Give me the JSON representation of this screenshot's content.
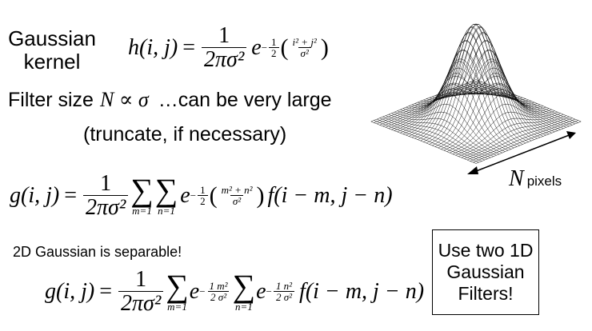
{
  "title": {
    "line1": "Gaussian",
    "line2": "kernel"
  },
  "kernel_formula": {
    "lhs": "h(i, j)",
    "equals": "=",
    "numerator": "1",
    "denominator": "2πσ²",
    "base": "e",
    "exp_sign": "−",
    "exp_num": "1",
    "exp_den": "2",
    "exp_inner_num": "i² + j²",
    "exp_inner_den": "σ²"
  },
  "filter_size": {
    "prefix": "Filter size",
    "relation": "N ∝ σ",
    "suffix": "…can be very large",
    "note": "(truncate, if necessary)"
  },
  "conv_formula": {
    "lhs": "g(i, j)",
    "equals": "=",
    "numerator": "1",
    "denominator": "2πσ²",
    "sum_symbol": "∑",
    "sum1_lower": "m=1",
    "sum2_lower": "n=1",
    "base": "e",
    "exp_sign": "−",
    "exp_num": "1",
    "exp_den": "2",
    "exp_inner_num": "m² + n²",
    "exp_inner_den": "σ²",
    "tail": "f(i − m, j − n)"
  },
  "separable_note": "2D Gaussian is separable!",
  "sep_formula": {
    "lhs": "g(i, j)",
    "equals": "=",
    "numerator": "1",
    "denominator": "2πσ²",
    "sum_symbol": "∑",
    "sum1_lower": "m=1",
    "sum2_lower": "n=1",
    "base": "e",
    "exp1_sign": "−",
    "exp1_num": "1 m²",
    "exp1_den": "2 σ²",
    "exp2_sign": "−",
    "exp2_num": "1 n²",
    "exp2_den": "2 σ²",
    "tail": "f(i − m, j − n)"
  },
  "callout": {
    "line1": "Use two 1D",
    "line2": "Gaussian",
    "line3": "Filters!"
  },
  "surface_plot": {
    "axis_symbol": "N",
    "axis_unit": "pixels"
  },
  "colors": {
    "text": "#000000",
    "background": "#ffffff"
  }
}
